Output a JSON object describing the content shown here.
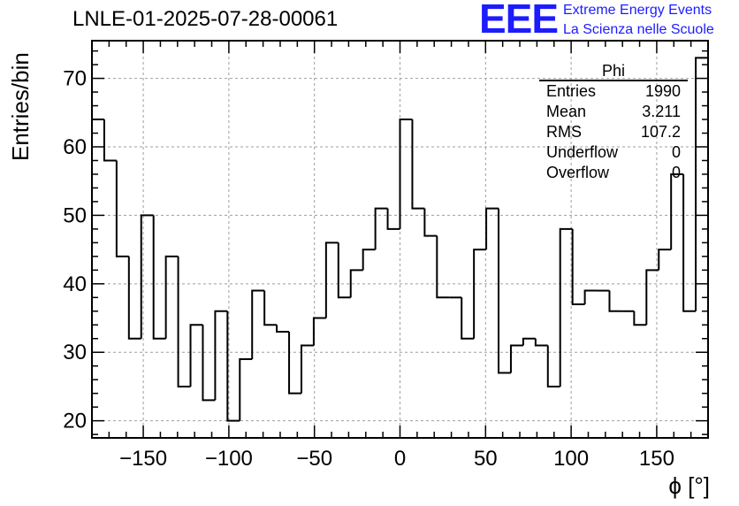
{
  "header": {
    "title": "LNLE-01-2025-07-28-00061",
    "logo_text": "EEE",
    "logo_line1": "Extreme Energy Events",
    "logo_line2": "La Scienza nelle Scuole"
  },
  "stats_box": {
    "title": "Phi",
    "rows": [
      {
        "label": "Entries",
        "value": "1990"
      },
      {
        "label": "Mean",
        "value": "3.211"
      },
      {
        "label": "RMS",
        "value": "107.2"
      },
      {
        "label": "Underflow",
        "value": "0"
      },
      {
        "label": "Overflow",
        "value": "0"
      }
    ]
  },
  "colors": {
    "line": "#000000",
    "grid": "#9e9e9e",
    "logo": "#1c1cff"
  },
  "chart_data": {
    "type": "histogram",
    "xlabel": "ϕ [°]",
    "ylabel": "Entries/bin",
    "xlim": [
      -180,
      180
    ],
    "ylim": [
      17.5,
      75.5
    ],
    "grid": true,
    "bin_width": 7.2,
    "x_start": -180,
    "x_ticks": [
      -150,
      -100,
      -50,
      0,
      50,
      100,
      150
    ],
    "x_tick_labels": [
      "−150",
      "−100",
      "−50",
      "0",
      "50",
      "100",
      "150"
    ],
    "y_ticks": [
      20,
      30,
      40,
      50,
      60,
      70
    ],
    "y_tick_labels": [
      "20",
      "30",
      "40",
      "50",
      "60",
      "70"
    ],
    "values": [
      64,
      58,
      44,
      32,
      50,
      32,
      44,
      25,
      34,
      23,
      36,
      20,
      29,
      39,
      34,
      33,
      24,
      31,
      35,
      46,
      38,
      42,
      45,
      51,
      48,
      64,
      51,
      47,
      38,
      38,
      32,
      45,
      51,
      27,
      31,
      32,
      31,
      25,
      48,
      37,
      39,
      39,
      36,
      36,
      34,
      42,
      45,
      56,
      36,
      73
    ]
  }
}
